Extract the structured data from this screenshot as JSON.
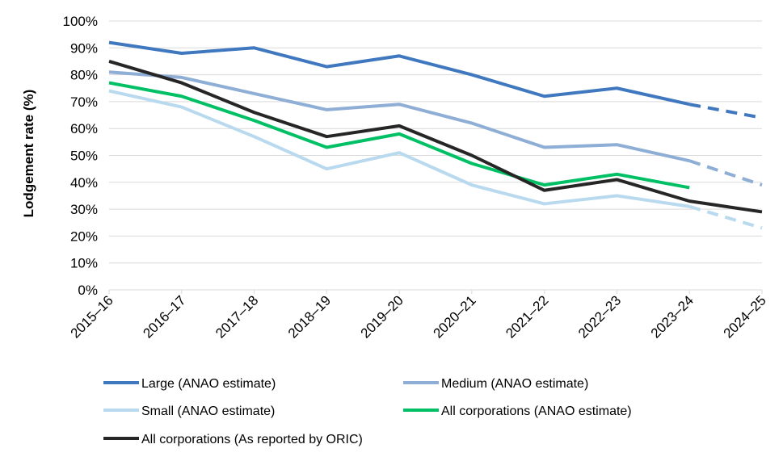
{
  "chart_data": {
    "type": "line",
    "title": "",
    "xlabel": "",
    "ylabel": "Lodgement rate (%)",
    "ylim": [
      0,
      100
    ],
    "yticks": [
      "0%",
      "10%",
      "20%",
      "30%",
      "40%",
      "50%",
      "60%",
      "70%",
      "80%",
      "90%",
      "100%"
    ],
    "categories": [
      "2015–16",
      "2016–17",
      "2017–18",
      "2018–19",
      "2019–20",
      "2020–21",
      "2021–22",
      "2022–23",
      "2023–24",
      "2024–25"
    ],
    "grid": "horizontal",
    "legend_position": "bottom",
    "series": [
      {
        "name": "Large (ANAO estimate)",
        "color": "#4078C0",
        "values": [
          92,
          88,
          90,
          83,
          87,
          80,
          72,
          75,
          69,
          64
        ],
        "dashed_from_index": 8
      },
      {
        "name": "Medium (ANAO estimate)",
        "color": "#8EAED6",
        "values": [
          81,
          79,
          73,
          67,
          69,
          62,
          53,
          54,
          48,
          39
        ],
        "dashed_from_index": 8
      },
      {
        "name": "Small (ANAO estimate)",
        "color": "#B8D9EE",
        "values": [
          74,
          68,
          57,
          45,
          51,
          39,
          32,
          35,
          31,
          23
        ],
        "dashed_from_index": 8
      },
      {
        "name": "All corporations (ANAO estimate)",
        "color": "#00C065",
        "values": [
          77,
          72,
          63,
          53,
          58,
          47,
          39,
          43,
          38,
          null
        ],
        "dashed_from_index": null
      },
      {
        "name": "All corporations (As reported by ORIC)",
        "color": "#262626",
        "values": [
          85,
          77,
          66,
          57,
          61,
          50,
          37,
          41,
          33,
          29
        ],
        "dashed_from_index": null
      }
    ]
  }
}
